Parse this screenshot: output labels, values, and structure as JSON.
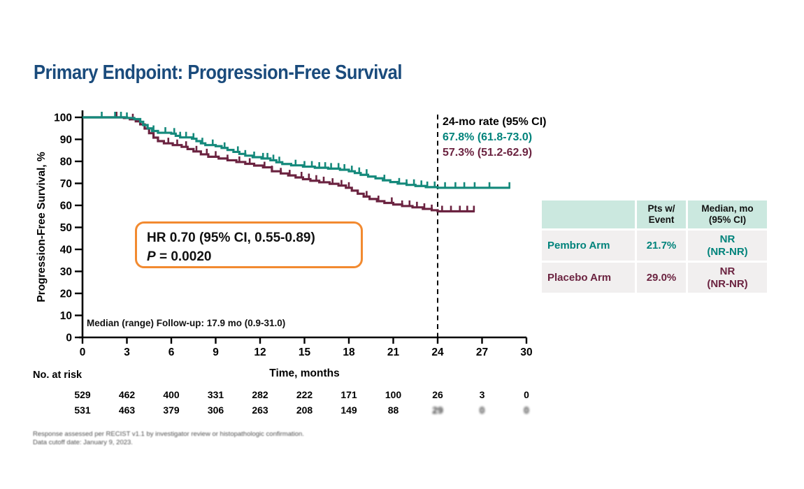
{
  "title": {
    "text": "Primary Endpoint: Progression-Free Survival"
  },
  "colors": {
    "title_navy": "#1A4B7C",
    "teal": "#14897B",
    "teal_text": "#00837B",
    "maroon": "#6B2340",
    "orange_box_border": "#F28A30",
    "table_header_mint": "#CBE8DF",
    "table_row_gray": "#F1EFEF",
    "axis_black": "#000000"
  },
  "chart_data": {
    "type": "line",
    "subtype": "kaplan-meier-step",
    "title": "Primary Endpoint: Progression-Free Survival",
    "xlabel": "Time, months",
    "ylabel": "Progression-Free Survival, %",
    "xlim": [
      0,
      30
    ],
    "ylim": [
      0,
      100
    ],
    "xticks": [
      0,
      3,
      6,
      9,
      12,
      15,
      18,
      21,
      24,
      27,
      30
    ],
    "yticks": [
      0,
      10,
      20,
      30,
      40,
      50,
      60,
      70,
      80,
      90,
      100
    ],
    "grid": false,
    "reference_line_x": 24,
    "series": [
      {
        "name": "Pembro Arm",
        "color": "#14897B",
        "points": [
          [
            0,
            100
          ],
          [
            3.0,
            99.7
          ],
          [
            3.5,
            99.2
          ],
          [
            3.9,
            98
          ],
          [
            4.1,
            96.5
          ],
          [
            4.4,
            95
          ],
          [
            4.7,
            93.8
          ],
          [
            5.1,
            93
          ],
          [
            6.0,
            92.6
          ],
          [
            6.3,
            91.6
          ],
          [
            6.6,
            90.9
          ],
          [
            7.4,
            90.3
          ],
          [
            7.7,
            89.2
          ],
          [
            8.0,
            88.2
          ],
          [
            8.3,
            87.4
          ],
          [
            9.0,
            86.9
          ],
          [
            9.4,
            86.1
          ],
          [
            9.8,
            85.2
          ],
          [
            10.2,
            84.3
          ],
          [
            10.6,
            83.4
          ],
          [
            11.0,
            82.6
          ],
          [
            11.5,
            81.9
          ],
          [
            12.1,
            81.3
          ],
          [
            12.7,
            80.5
          ],
          [
            13.1,
            79.6
          ],
          [
            13.5,
            78.8
          ],
          [
            14.1,
            78.2
          ],
          [
            14.9,
            77.6
          ],
          [
            15.7,
            77.1
          ],
          [
            16.6,
            76.7
          ],
          [
            17.4,
            76.2
          ],
          [
            18.0,
            75.5
          ],
          [
            18.4,
            74.7
          ],
          [
            18.8,
            73.9
          ],
          [
            19.3,
            73.1
          ],
          [
            19.8,
            72.3
          ],
          [
            20.3,
            71.4
          ],
          [
            20.8,
            70.6
          ],
          [
            21.3,
            69.9
          ],
          [
            21.9,
            69.3
          ],
          [
            22.5,
            68.8
          ],
          [
            23.2,
            68.3
          ],
          [
            24.0,
            68.0
          ],
          [
            28.9,
            68.0
          ]
        ],
        "censor_months": [
          1.3,
          2.2,
          2.6,
          3.0,
          4.8,
          5.6,
          6.2,
          6.6,
          7.0,
          7.5,
          8.1,
          8.8,
          9.6,
          10.5,
          11.0,
          11.6,
          12.2,
          12.5,
          12.9,
          13.3,
          14.4,
          15.0,
          15.5,
          16.0,
          16.4,
          16.8,
          17.3,
          17.7,
          18.2,
          18.7,
          19.2,
          20.4,
          21.4,
          21.9,
          22.4,
          22.9,
          23.3,
          23.8,
          24.5,
          25.2,
          25.8,
          26.5,
          27.5,
          28.85
        ]
      },
      {
        "name": "Placebo Arm",
        "color": "#6B2340",
        "points": [
          [
            0,
            100
          ],
          [
            2.8,
            99.7
          ],
          [
            3.2,
            99.1
          ],
          [
            3.6,
            98.2
          ],
          [
            3.9,
            96.8
          ],
          [
            4.2,
            94.9
          ],
          [
            4.5,
            92.8
          ],
          [
            4.8,
            90.8
          ],
          [
            5.1,
            89.2
          ],
          [
            5.5,
            88.2
          ],
          [
            6.1,
            87.4
          ],
          [
            6.7,
            86.6
          ],
          [
            7.1,
            85.6
          ],
          [
            7.5,
            84.5
          ],
          [
            8.0,
            83.2
          ],
          [
            8.5,
            82.1
          ],
          [
            9.2,
            81.3
          ],
          [
            9.8,
            80.5
          ],
          [
            10.4,
            79.7
          ],
          [
            11.0,
            78.9
          ],
          [
            11.6,
            78.1
          ],
          [
            12.2,
            77.3
          ],
          [
            12.8,
            75.5
          ],
          [
            13.4,
            74.5
          ],
          [
            13.9,
            73.6
          ],
          [
            14.4,
            72.7
          ],
          [
            14.9,
            71.9
          ],
          [
            15.4,
            71.2
          ],
          [
            16.0,
            70.5
          ],
          [
            16.7,
            69.8
          ],
          [
            17.3,
            69.0
          ],
          [
            17.8,
            68.0
          ],
          [
            18.2,
            66.7
          ],
          [
            18.6,
            65.3
          ],
          [
            19.0,
            64.0
          ],
          [
            19.4,
            62.9
          ],
          [
            19.9,
            61.9
          ],
          [
            20.4,
            61.1
          ],
          [
            21.0,
            60.4
          ],
          [
            21.6,
            59.7
          ],
          [
            22.3,
            59.1
          ],
          [
            23.0,
            58.4
          ],
          [
            23.6,
            57.8
          ],
          [
            24.0,
            57.3
          ],
          [
            26.5,
            57.3
          ]
        ],
        "censor_months": [
          2.3,
          3.4,
          5.8,
          6.4,
          7.0,
          7.7,
          8.4,
          9.0,
          9.8,
          10.6,
          11.3,
          12.3,
          12.8,
          13.4,
          14.0,
          14.8,
          15.3,
          15.8,
          16.3,
          16.9,
          17.5,
          18.0,
          19.2,
          20.0,
          20.9,
          21.6,
          22.1,
          22.6,
          23.1,
          23.6,
          24.3,
          24.9,
          25.5,
          26.0,
          26.45
        ]
      }
    ],
    "annotations": {
      "rate_title": "24-mo rate (95% CI)",
      "pembro_rate": "67.8% (61.8-73.0)",
      "placebo_rate": "57.3% (51.2-62.9)",
      "hr_line": "HR 0.70 (95% CI, 0.55-0.89)",
      "p_label": "P",
      "p_value": " = 0.0020",
      "median_followup": "Median (range) Follow-up: 17.9 mo (0.9-31.0)"
    }
  },
  "no_at_risk": {
    "label": "No. at risk",
    "timepoints": [
      0,
      3,
      6,
      9,
      12,
      15,
      18,
      21,
      24,
      27,
      30
    ],
    "rows": [
      {
        "arm": "Pembro Arm",
        "color": "#00837B",
        "values": [
          "529",
          "462",
          "400",
          "331",
          "282",
          "222",
          "171",
          "100",
          "26",
          "3",
          "0"
        ],
        "smudged": []
      },
      {
        "arm": "Placebo Arm",
        "color": "#6B2340",
        "values": [
          "531",
          "463",
          "379",
          "306",
          "263",
          "208",
          "149",
          "88",
          "29",
          "0",
          "0"
        ],
        "smudged": [
          8,
          9,
          10
        ]
      }
    ]
  },
  "side_table": {
    "headers": [
      "",
      "Pts w/\nEvent",
      "Median, mo\n(95% CI)"
    ],
    "rows": [
      {
        "arm": "Pembro Arm",
        "pts_w_event": "21.7%",
        "median": "NR\n(NR-NR)"
      },
      {
        "arm": "Placebo Arm",
        "pts_w_event": "29.0%",
        "median": "NR\n(NR-NR)"
      }
    ]
  },
  "footnotes": {
    "lines": [
      "Response assessed per RECIST v1.1 by investigator review or histopathologic confirmation.",
      "Data cutoff date: January 9, 2023."
    ]
  }
}
